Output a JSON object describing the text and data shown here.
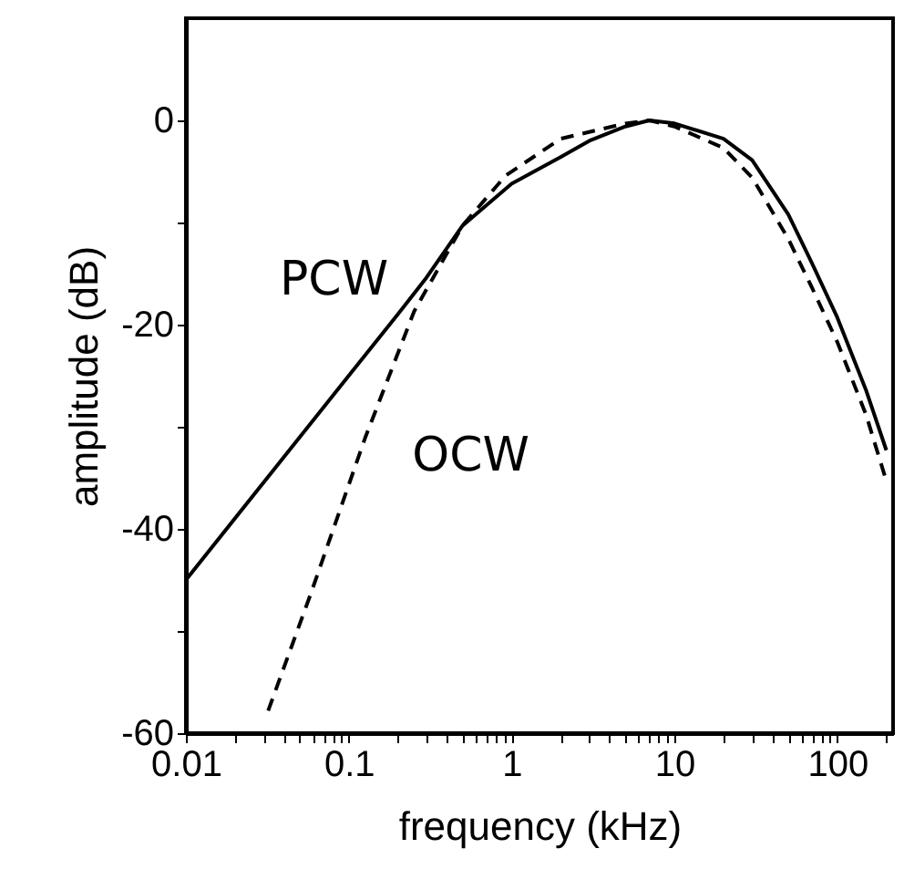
{
  "chart_data": {
    "type": "line",
    "xlabel": "frequency (kHz)",
    "ylabel": "amplitude (dB)",
    "log": "x",
    "xlim": [
      0.01,
      220
    ],
    "ylim": [
      -60,
      10
    ],
    "xticks": [
      0.01,
      {
        "value": 0.02,
        "label": null
      },
      {
        "value": 0.03,
        "label": null
      },
      {
        "value": 0.04,
        "label": null
      },
      {
        "value": 0.05,
        "label": null
      },
      {
        "value": 0.06,
        "label": null
      },
      {
        "value": 0.07,
        "label": null
      },
      {
        "value": 0.08,
        "label": null
      },
      {
        "value": 0.09,
        "label": null
      },
      0.1,
      {
        "value": 0.2,
        "label": null
      },
      {
        "value": 0.3,
        "label": null
      },
      {
        "value": 0.4,
        "label": null
      },
      {
        "value": 0.5,
        "label": null
      },
      {
        "value": 0.6,
        "label": null
      },
      {
        "value": 0.7,
        "label": null
      },
      {
        "value": 0.8,
        "label": null
      },
      {
        "value": 0.9,
        "label": null
      },
      1,
      {
        "value": 2,
        "label": null
      },
      {
        "value": 3,
        "label": null
      },
      {
        "value": 4,
        "label": null
      },
      {
        "value": 5,
        "label": null
      },
      {
        "value": 6,
        "label": null
      },
      {
        "value": 7,
        "label": null
      },
      {
        "value": 8,
        "label": null
      },
      {
        "value": 9,
        "label": null
      },
      10,
      {
        "value": 20,
        "label": null
      },
      {
        "value": 30,
        "label": null
      },
      {
        "value": 40,
        "label": null
      },
      {
        "value": 50,
        "label": null
      },
      {
        "value": 60,
        "label": null
      },
      {
        "value": 70,
        "label": null
      },
      {
        "value": 80,
        "label": null
      },
      {
        "value": 90,
        "label": null
      },
      100,
      {
        "value": 200,
        "label": null
      }
    ],
    "yticks": [
      -60,
      {
        "value": -50,
        "label": null
      },
      -40,
      {
        "value": -30,
        "label": null
      },
      -20,
      {
        "value": -10,
        "label": null
      },
      0
    ],
    "grid": false,
    "marker": "none",
    "series": [
      {
        "name": "PCW",
        "color": "#000000",
        "line_style": "solid",
        "x": [
          0.01,
          0.1,
          0.2,
          0.3,
          0.5,
          1,
          2,
          3,
          5,
          7,
          10,
          20,
          30,
          50,
          70,
          100,
          150,
          200
        ],
        "values": [
          -45,
          -25,
          -19,
          -15.4,
          -10.3,
          -6.2,
          -3.6,
          -2,
          -0.6,
          0,
          -0.3,
          -1.8,
          -3.9,
          -9.2,
          -14,
          -19.3,
          -26.4,
          -32.3
        ]
      },
      {
        "name": "OCW",
        "color": "#000000",
        "line_style": "dashed",
        "x": [
          0.032,
          0.058,
          0.126,
          0.252,
          0.5,
          0.92,
          2,
          5,
          7,
          10,
          20,
          30,
          50,
          70,
          100,
          150,
          200
        ],
        "values": [
          -57.8,
          -46.5,
          -31.1,
          -18.7,
          -10.3,
          -5.4,
          -1.8,
          -0.3,
          0,
          -0.6,
          -2.7,
          -5.6,
          -11.6,
          -16.4,
          -21.7,
          -28.8,
          -35.3
        ]
      }
    ]
  }
}
